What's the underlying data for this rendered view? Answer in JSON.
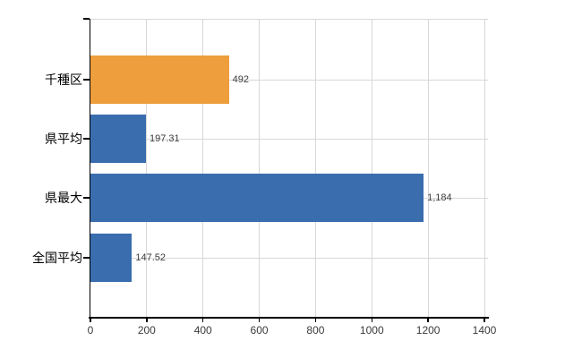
{
  "chart_data": {
    "type": "bar",
    "orientation": "horizontal",
    "title": "",
    "xlabel": "",
    "ylabel": "",
    "categories": [
      "千種区",
      "県平均",
      "県最大",
      "全国平均"
    ],
    "values": [
      492,
      197.31,
      1184,
      147.52
    ],
    "value_labels": [
      "492",
      "197.31",
      "1,184",
      "147.52"
    ],
    "bar_colors": [
      "#EE9E3D",
      "#3A6DAE",
      "#3A6DAE",
      "#3A6DAE"
    ],
    "xlim": [
      0,
      1400
    ],
    "x_ticks": [
      0,
      200,
      400,
      600,
      800,
      1000,
      1200,
      1400
    ],
    "x_tick_labels": [
      "0",
      "200",
      "400",
      "600",
      "800",
      "1000",
      "1200",
      "1400"
    ],
    "grid": true,
    "legend": false
  },
  "colors": {
    "orange_bar": "#EE9E3D",
    "blue_bar": "#3A6DAE",
    "gridline": "#D8D8D8",
    "axis": "#000000",
    "tick_label": "#3B3B3B",
    "category_label": "#000000",
    "background": "#FFFFFF"
  }
}
